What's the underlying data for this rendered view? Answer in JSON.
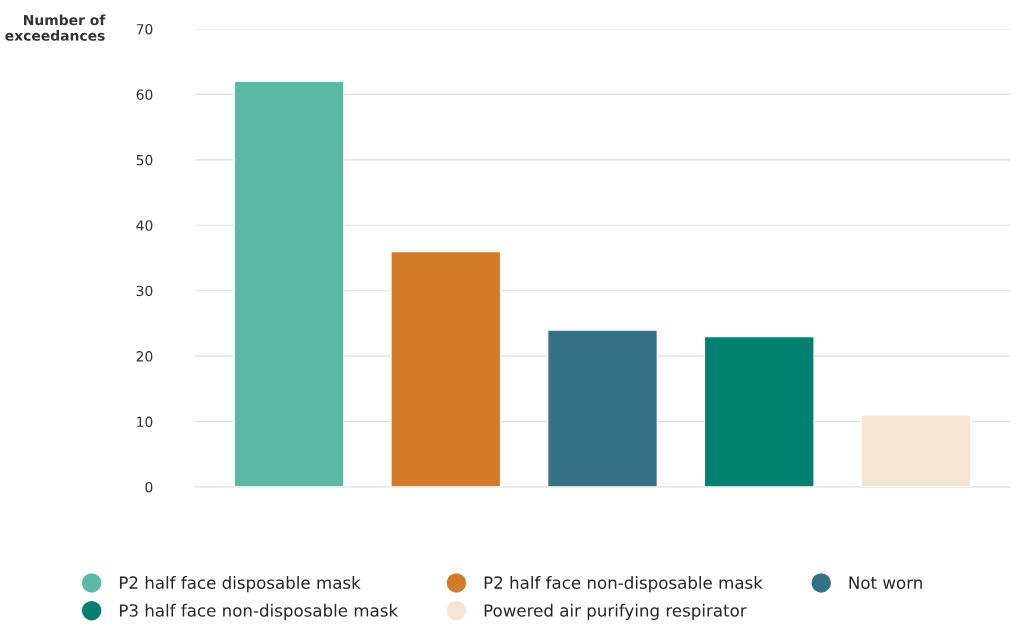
{
  "chart_data": {
    "type": "bar",
    "ylabel": "Number of\nexceedances",
    "categories": [
      null,
      null,
      null,
      null,
      null
    ],
    "series": [
      {
        "name": "P2 half face disposable mask",
        "color": "#5cb9a5",
        "values": [
          62,
          null,
          null,
          null,
          null
        ]
      },
      {
        "name": "P2 half face non-disposable mask",
        "color": "#d47b29",
        "values": [
          null,
          36,
          null,
          null,
          null
        ]
      },
      {
        "name": "Not worn",
        "color": "#357186",
        "values": [
          null,
          null,
          24,
          null,
          null
        ]
      },
      {
        "name": "P3 half face non-disposable mask",
        "color": "#008070",
        "values": [
          null,
          null,
          null,
          23,
          null
        ]
      },
      {
        "name": "Powered air purifying respirator",
        "color": "#f5e4d4",
        "values": [
          null,
          null,
          null,
          null,
          11
        ]
      }
    ],
    "ylim": [
      0,
      70
    ],
    "yticks": [
      0,
      10,
      20,
      30,
      40,
      50,
      60,
      70
    ],
    "grid": "y",
    "legend": "bottom",
    "marker": "circle"
  }
}
